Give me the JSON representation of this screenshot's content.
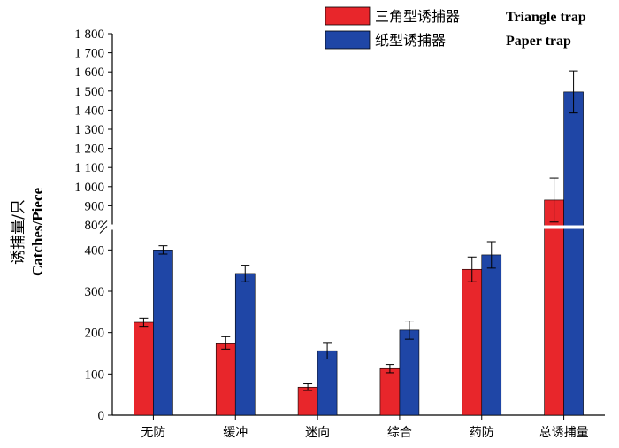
{
  "chart_data": {
    "type": "bar",
    "categories": [
      "无防",
      "缓冲",
      "迷向",
      "综合",
      "药防",
      "总诱捕量"
    ],
    "series": [
      {
        "name": "三角型诱捕器 Triangle trap",
        "name_cn": "三角型诱捕器",
        "name_en": "Triangle trap",
        "color": "#e8262b",
        "values": [
          225,
          175,
          68,
          113,
          353,
          930
        ],
        "errors": [
          10,
          15,
          8,
          10,
          30,
          115
        ]
      },
      {
        "name": "纸型诱捕器 Paper trap",
        "name_cn": "纸型诱捕器",
        "name_en": "Paper trap",
        "color": "#1f46a6",
        "values": [
          400,
          343,
          156,
          206,
          388,
          1495
        ],
        "errors": [
          10,
          20,
          20,
          22,
          32,
          110
        ]
      }
    ],
    "ylabel_cn": "诱捕量/只",
    "ylabel_en": "Catches/Piece",
    "xlabel": "",
    "ylim": [
      0,
      1800
    ],
    "axis_break": {
      "lower_max": 450,
      "upper_min": 800
    },
    "lower_ticks": [
      "0",
      "100",
      "200",
      "300",
      "400"
    ],
    "upper_ticks": [
      "800",
      "900",
      "1 000",
      "1 100",
      "1 200",
      "1 300",
      "1 400",
      "1 500",
      "1 600",
      "1 700",
      "1 800"
    ],
    "legend_position": "top-right",
    "grid": false
  }
}
